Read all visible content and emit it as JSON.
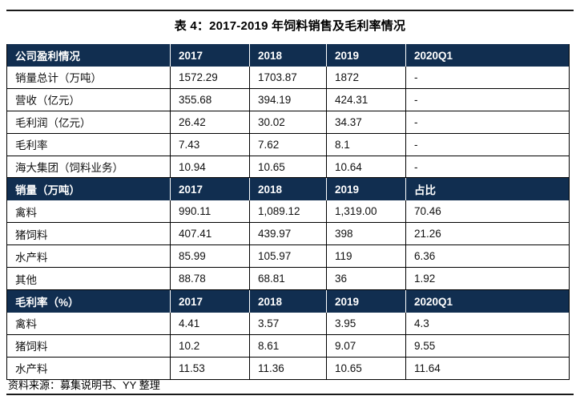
{
  "page": {
    "title": "表 4：2017-2019 年饲料销售及毛利率情况",
    "source": "资料来源：募集说明书、YY 整理"
  },
  "colors": {
    "header_bg": "#112E50",
    "rule": "#1a1a1a",
    "header_text": "#ffffff",
    "border": "#000000"
  },
  "table": {
    "sections": [
      {
        "header": [
          "公司盈利情况",
          "2017",
          "2018",
          "2019",
          "2020Q1"
        ],
        "rows": [
          [
            "销量总计（万吨）",
            "1572.29",
            "1703.87",
            "1872",
            "-"
          ],
          [
            "营收（亿元）",
            "355.68",
            "394.19",
            "424.31",
            "-"
          ],
          [
            "毛利润（亿元）",
            "26.42",
            "30.02",
            "34.37",
            "-"
          ],
          [
            "毛利率",
            "7.43",
            "7.62",
            "8.1",
            "-"
          ],
          [
            "海大集团（饲料业务）",
            "10.94",
            "10.65",
            "10.64",
            "-"
          ]
        ]
      },
      {
        "header": [
          "销量（万吨）",
          "2017",
          "2018",
          "2019",
          "占比"
        ],
        "rows": [
          [
            "禽料",
            "990.11",
            "1,089.12",
            "1,319.00",
            "70.46"
          ],
          [
            "猪饲料",
            "407.41",
            "439.97",
            "398",
            "21.26"
          ],
          [
            "水产料",
            "85.99",
            "105.97",
            "119",
            "6.36"
          ],
          [
            "其他",
            "88.78",
            "68.81",
            "36",
            "1.92"
          ]
        ]
      },
      {
        "header": [
          "毛利率（%）",
          "2017",
          "2018",
          "2019",
          "2020Q1"
        ],
        "rows": [
          [
            "禽料",
            "4.41",
            "3.57",
            "3.95",
            "4.3"
          ],
          [
            "猪饲料",
            "10.2",
            "8.61",
            "9.07",
            "9.55"
          ],
          [
            "水产料",
            "11.53",
            "11.36",
            "10.65",
            "11.64"
          ]
        ]
      }
    ]
  }
}
